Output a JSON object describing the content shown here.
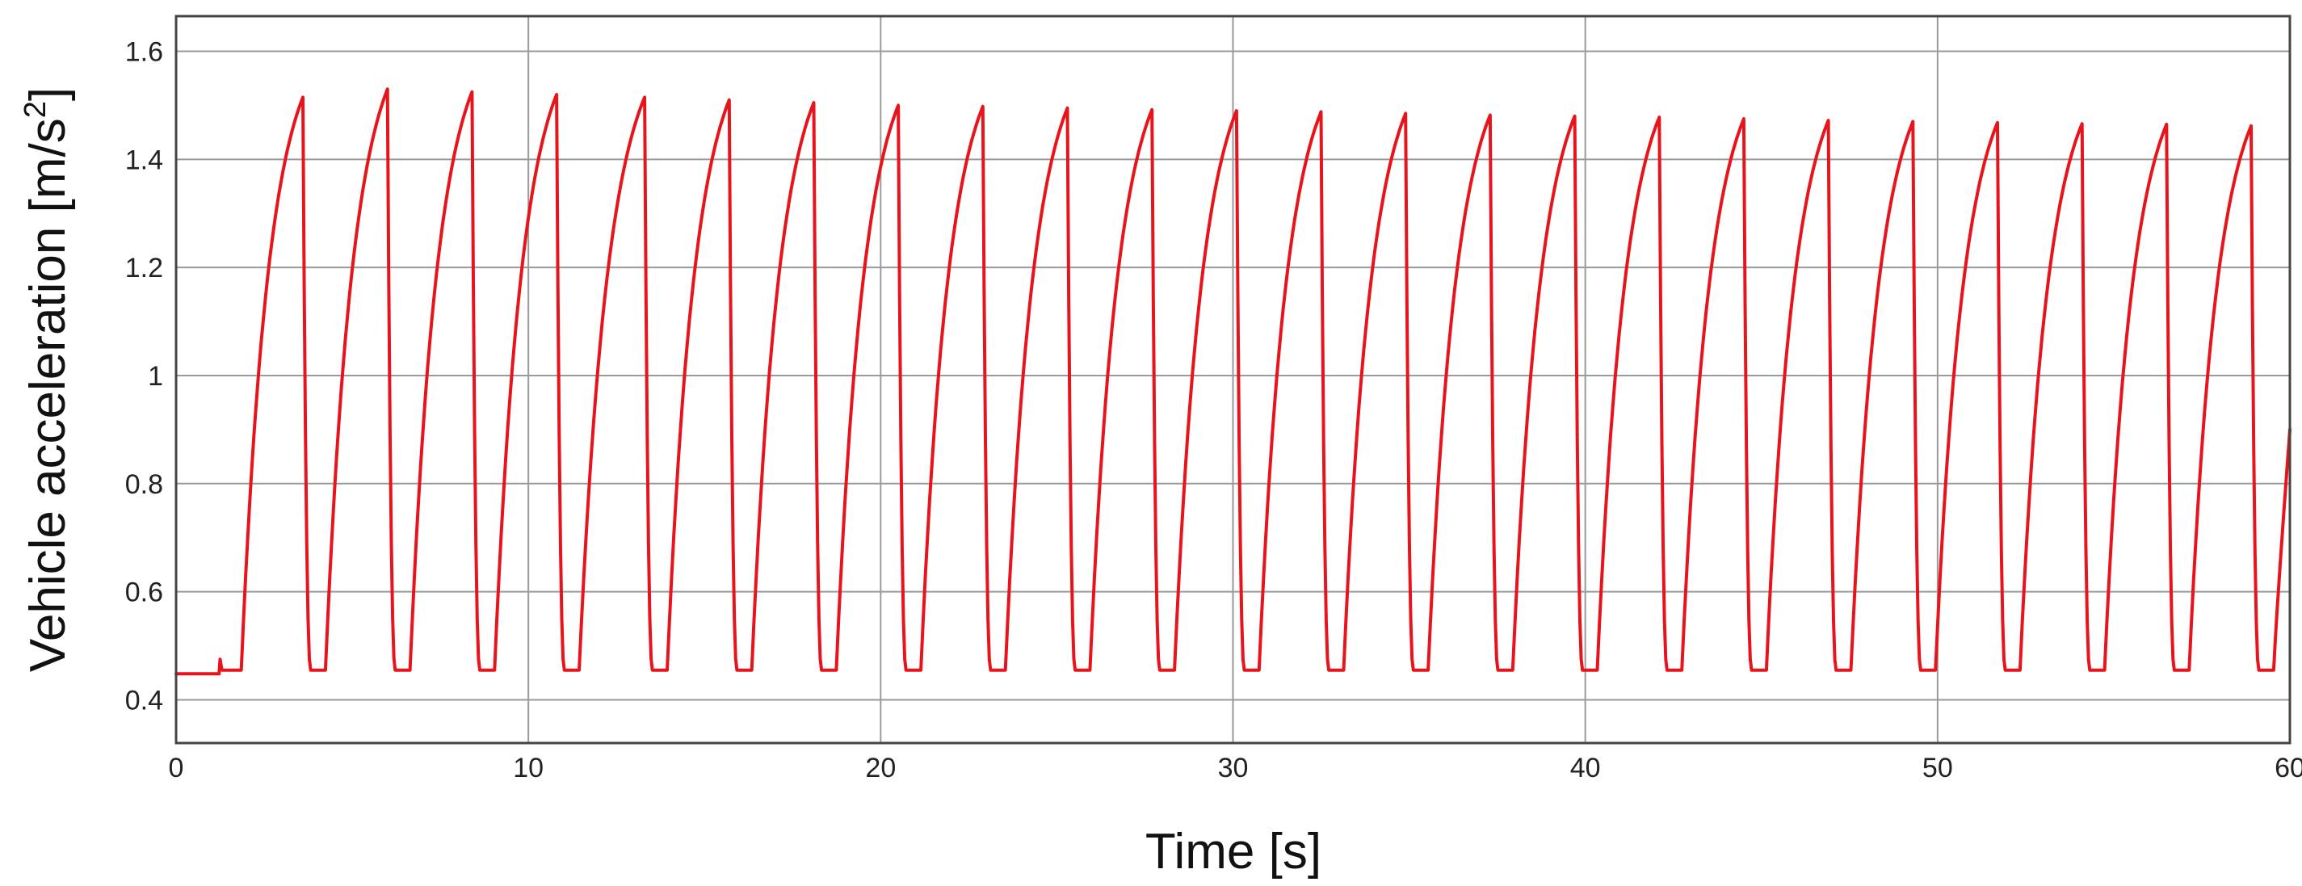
{
  "chart_data": {
    "type": "line",
    "title": "",
    "xlabel": "Time [s]",
    "ylabel_text": "Vehicle acceleration [m/s",
    "ylabel_sup": "2",
    "ylabel_close": "]",
    "xlim": [
      0,
      60
    ],
    "ylim": [
      0.32,
      1.665
    ],
    "grid": true,
    "legend": "none",
    "xticks": [
      0,
      10,
      20,
      30,
      40,
      50,
      60
    ],
    "xtick_labels": [
      "0",
      "10",
      "20",
      "30",
      "40",
      "50",
      "60"
    ],
    "yticks": [
      0.4,
      0.6,
      0.8,
      1.0,
      1.2,
      1.4,
      1.6
    ],
    "ytick_labels": [
      "0.4",
      "0.6",
      "0.8",
      "1",
      "1.2",
      "1.4",
      "1.6"
    ],
    "series": [
      {
        "color": "#e8141b",
        "baseline": 0.455,
        "initial_level": 0.448,
        "initial_spike": {
          "t": 1.25,
          "value": 0.475
        },
        "ramp_start_t": 1.85,
        "peaks": [
          {
            "t": 3.6,
            "value": 1.515
          },
          {
            "t": 6.0,
            "value": 1.53
          },
          {
            "t": 8.4,
            "value": 1.525
          },
          {
            "t": 10.8,
            "value": 1.52
          },
          {
            "t": 13.3,
            "value": 1.515
          },
          {
            "t": 15.7,
            "value": 1.51
          },
          {
            "t": 18.1,
            "value": 1.505
          },
          {
            "t": 20.5,
            "value": 1.5
          },
          {
            "t": 22.9,
            "value": 1.498
          },
          {
            "t": 25.3,
            "value": 1.495
          },
          {
            "t": 27.7,
            "value": 1.492
          },
          {
            "t": 30.1,
            "value": 1.49
          },
          {
            "t": 32.5,
            "value": 1.488
          },
          {
            "t": 34.9,
            "value": 1.485
          },
          {
            "t": 37.3,
            "value": 1.482
          },
          {
            "t": 39.7,
            "value": 1.48
          },
          {
            "t": 42.1,
            "value": 1.478
          },
          {
            "t": 44.5,
            "value": 1.475
          },
          {
            "t": 46.9,
            "value": 1.472
          },
          {
            "t": 49.3,
            "value": 1.47
          },
          {
            "t": 51.7,
            "value": 1.468
          },
          {
            "t": 54.1,
            "value": 1.466
          },
          {
            "t": 56.5,
            "value": 1.465
          },
          {
            "t": 58.9,
            "value": 1.462
          }
        ],
        "end": {
          "t": 60.0,
          "value": 0.9
        }
      }
    ]
  }
}
